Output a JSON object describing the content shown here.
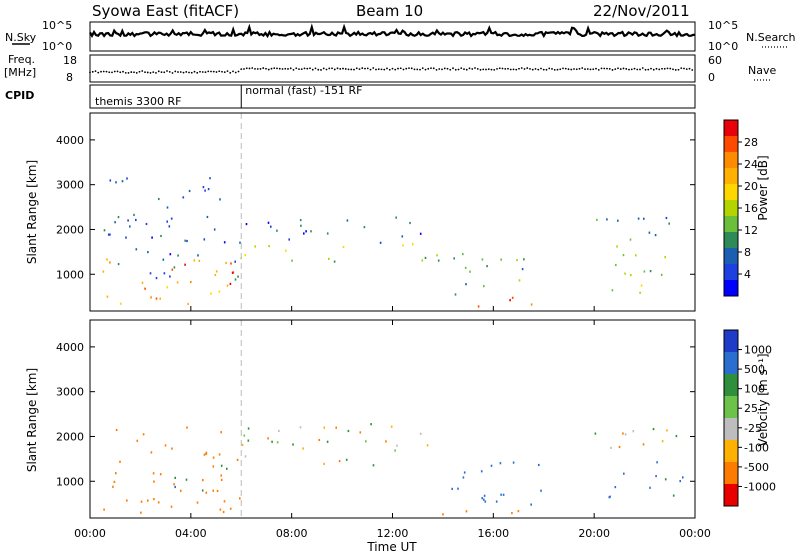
{
  "header": {
    "title": "Syowa East (fitACF)",
    "beam": "Beam 10",
    "date": "22/Nov/2011"
  },
  "noise_panel": {
    "left_label": "N.Sky",
    "right_label": "N.Search",
    "left_ticks": [
      "10^5",
      "10^0"
    ],
    "right_ticks": [
      "10^5",
      "10^0"
    ]
  },
  "freq_panel": {
    "left_label_1": "Freq.",
    "left_label_2": "[MHz]",
    "right_label": "Nave",
    "left_ticks": [
      "18",
      "8"
    ],
    "right_ticks": [
      "60",
      "0"
    ]
  },
  "cpid_panel": {
    "label": "CPID",
    "modes": [
      "themis 3300 RF",
      "normal (fast) -151 RF"
    ],
    "mode_change_hour": 6
  },
  "x_axis": {
    "title": "Time UT",
    "ticks": [
      "00:00",
      "04:00",
      "08:00",
      "12:00",
      "16:00",
      "20:00",
      "00:00"
    ]
  },
  "chart_data": [
    {
      "type": "heatmap",
      "parameter": "power",
      "ylabel": "Slant Range [km]",
      "y_ticks": [
        1000,
        2000,
        3000,
        4000
      ],
      "ylim": [
        180,
        4600
      ],
      "xlim_hours": [
        0,
        24
      ],
      "colorbar": {
        "title": "Power [dB]",
        "tick_labels": [
          "28",
          "24",
          "20",
          "16",
          "12",
          "8",
          "4"
        ],
        "colors": [
          "#e8000b",
          "#ff4b00",
          "#ff8c00",
          "#ffb000",
          "#ffd700",
          "#b4d400",
          "#6cbf3a",
          "#2e8b57",
          "#1c5fb2",
          "#1e40e0",
          "#0000ff"
        ]
      },
      "echo_regions": [
        {
          "t": [
            0.5,
            6.0
          ],
          "r": [
            900,
            3200
          ],
          "level": 0.18
        },
        {
          "t": [
            0.5,
            6.0
          ],
          "r": [
            300,
            1400
          ],
          "level": 0.7
        },
        {
          "t": [
            3.5,
            5.8
          ],
          "r": [
            800,
            1300
          ],
          "level": 0.9
        },
        {
          "t": [
            6.0,
            13.5
          ],
          "r": [
            1300,
            1700
          ],
          "level": 0.45
        },
        {
          "t": [
            6.0,
            13.5
          ],
          "r": [
            1700,
            2300
          ],
          "level": 0.15
        },
        {
          "t": [
            13.5,
            18.2
          ],
          "r": [
            300,
            500
          ],
          "level": 0.9
        },
        {
          "t": [
            13.5,
            17.5
          ],
          "r": [
            500,
            1500
          ],
          "level": 0.35
        },
        {
          "t": [
            19.5,
            23.5
          ],
          "r": [
            1600,
            2300
          ],
          "level": 0.3
        },
        {
          "t": [
            20.5,
            23.8
          ],
          "r": [
            600,
            1500
          ],
          "level": 0.45
        }
      ]
    },
    {
      "type": "heatmap",
      "parameter": "velocity",
      "ylabel": "Slant Range [km]",
      "y_ticks": [
        1000,
        2000,
        3000,
        4000
      ],
      "ylim": [
        180,
        4600
      ],
      "xlim_hours": [
        0,
        24
      ],
      "colorbar": {
        "title": "Velocity [m s⁻¹]",
        "tick_labels": [
          "1000",
          "500",
          "100",
          "25",
          "-25",
          "-100",
          "-500",
          "-1000"
        ],
        "colors": [
          "#1e3cc8",
          "#2a6fd0",
          "#2f8f3c",
          "#6cc24a",
          "#bdbdbd",
          "#ffb000",
          "#ff7a00",
          "#e80000"
        ]
      },
      "echo_regions": [
        {
          "t": [
            0.5,
            6.0
          ],
          "r": [
            300,
            2300
          ],
          "v": -300
        },
        {
          "t": [
            3.0,
            5.5
          ],
          "r": [
            800,
            1400
          ],
          "v": 200
        },
        {
          "t": [
            6.0,
            13.5
          ],
          "r": [
            1300,
            2300
          ],
          "v": 0
        },
        {
          "t": [
            13.5,
            18.0
          ],
          "r": [
            500,
            1500
          ],
          "v": 600
        },
        {
          "t": [
            13.5,
            18.0
          ],
          "r": [
            250,
            450
          ],
          "v": -300
        },
        {
          "t": [
            19.5,
            23.5
          ],
          "r": [
            1600,
            2300
          ],
          "v": 0
        },
        {
          "t": [
            20.5,
            23.5
          ],
          "r": [
            600,
            1500
          ],
          "v": 400
        }
      ]
    }
  ]
}
